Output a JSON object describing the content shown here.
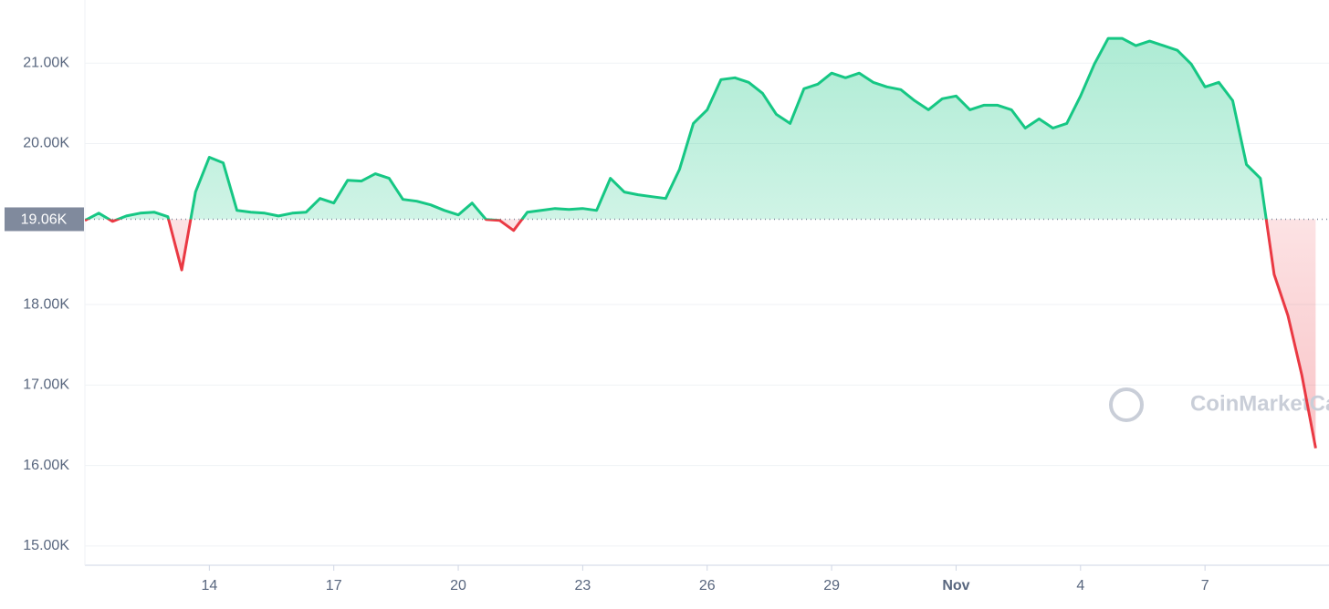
{
  "chart_data": {
    "type": "line",
    "watermark": "CoinMarketCap",
    "categories": [
      null,
      null,
      null,
      null,
      null,
      null,
      null,
      null,
      null,
      "14",
      null,
      null,
      null,
      null,
      null,
      null,
      null,
      null,
      "17",
      null,
      null,
      null,
      null,
      null,
      null,
      null,
      null,
      "20",
      null,
      null,
      null,
      null,
      null,
      null,
      null,
      null,
      "23",
      null,
      null,
      null,
      null,
      null,
      null,
      null,
      null,
      "26",
      null,
      null,
      null,
      null,
      null,
      null,
      null,
      null,
      "29",
      null,
      null,
      null,
      null,
      null,
      null,
      null,
      null,
      "Nov",
      null,
      null,
      null,
      null,
      null,
      null,
      null,
      null,
      "4",
      null,
      null,
      null,
      null,
      null,
      null,
      null,
      null,
      "7",
      null,
      null,
      null,
      null,
      null,
      null,
      null,
      null
    ],
    "values": [
      19045,
      19136,
      19034,
      19100,
      19136,
      19148,
      19091,
      18430,
      19398,
      19830,
      19761,
      19170,
      19148,
      19136,
      19100,
      19136,
      19148,
      19318,
      19261,
      19545,
      19534,
      19625,
      19568,
      19307,
      19284,
      19239,
      19170,
      19114,
      19261,
      19057,
      19045,
      18920,
      19148,
      19170,
      19193,
      19182,
      19193,
      19170,
      19568,
      19398,
      19364,
      19341,
      19318,
      19682,
      20250,
      20420,
      20795,
      20818,
      20761,
      20625,
      20364,
      20250,
      20682,
      20739,
      20875,
      20818,
      20875,
      20761,
      20705,
      20670,
      20534,
      20420,
      20557,
      20591,
      20420,
      20477,
      20477,
      20420,
      20193,
      20307,
      20193,
      20250,
      20591,
      20989,
      21307,
      21307,
      21216,
      21273,
      21216,
      21159,
      20989,
      20705,
      20761,
      20534,
      19739,
      19568,
      18375,
      17864,
      17125,
      16216
    ],
    "color_up": "#16c784",
    "color_down": "#ea3943",
    "reference": {
      "value": 19060,
      "label": "19.06K"
    },
    "ylim": [
      14761,
      21784
    ],
    "yticks": [
      {
        "value": 15000,
        "label": "15.00K"
      },
      {
        "value": 16000,
        "label": "16.00K"
      },
      {
        "value": 17000,
        "label": "17.00K"
      },
      {
        "value": 18000,
        "label": "18.00K"
      },
      {
        "value": 20000,
        "label": "20.00K"
      },
      {
        "value": 21000,
        "label": "21.00K"
      }
    ],
    "grid": true
  }
}
